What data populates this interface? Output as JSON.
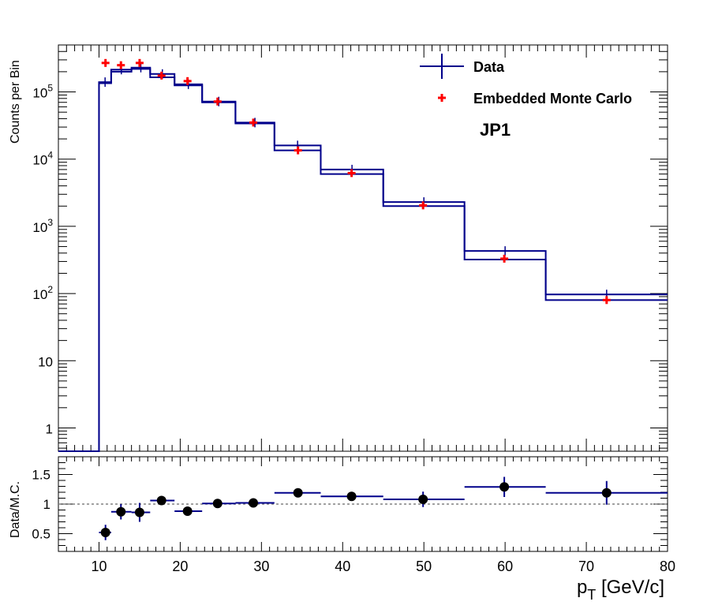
{
  "chart_data": [
    {
      "type": "line",
      "panel": "main",
      "ylabel": "Counts per Bin",
      "log_y": true,
      "xlim": [
        5,
        80
      ],
      "ylim": [
        0.45,
        500000
      ],
      "y_tick_labels": [
        {
          "value": 1,
          "mant": "1",
          "exp": ""
        },
        {
          "value": 10,
          "mant": "10",
          "exp": ""
        },
        {
          "value": 100,
          "mant": "10",
          "exp": "2"
        },
        {
          "value": 1000,
          "mant": "10",
          "exp": "3"
        },
        {
          "value": 10000,
          "mant": "10",
          "exp": "4"
        },
        {
          "value": 100000,
          "mant": "10",
          "exp": "5"
        }
      ],
      "annotation": "JP1",
      "legend_position": "top-right",
      "bin_edges": [
        10,
        11.5,
        14,
        16.3,
        19.3,
        22.7,
        26.8,
        31.6,
        37.3,
        45,
        55,
        65,
        80
      ],
      "series": [
        {
          "name": "Data",
          "style": "step",
          "color": "#00008b",
          "values": [
            140000,
            215000,
            230000,
            185000,
            130000,
            72000,
            35000,
            16000,
            7000,
            2300,
            430,
            97
          ]
        },
        {
          "name": "Data",
          "style": "step",
          "color": "#00008b",
          "values": [
            135000,
            200000,
            220000,
            165000,
            125000,
            70000,
            34000,
            13500,
            6000,
            2000,
            320,
            80
          ]
        },
        {
          "name": "Embedded Monte Carlo",
          "style": "marker",
          "color": "#ff0000",
          "x": [
            10.8,
            12.7,
            15,
            17.7,
            20.9,
            24.6,
            29,
            34.5,
            41.1,
            49.9,
            59.9,
            72.5
          ],
          "values": [
            270000,
            250000,
            270000,
            175000,
            145000,
            72000,
            35000,
            13500,
            6200,
            2050,
            330,
            80
          ]
        }
      ]
    },
    {
      "type": "scatter",
      "panel": "ratio",
      "xlabel_main": "p",
      "xlabel_sub": "T",
      "xlabel_rest": " [GeV/c]",
      "ylabel": "Data/M.C.",
      "xlim": [
        5,
        80
      ],
      "ylim": [
        0.2,
        1.8
      ],
      "x_ticks": [
        "10",
        "20",
        "30",
        "40",
        "50",
        "60",
        "70",
        "80"
      ],
      "y_ticks": [
        "0.5",
        "1",
        "1.5"
      ],
      "reference_line": 1,
      "points": [
        {
          "x": 10.8,
          "y": 0.52,
          "xlo": 10,
          "xhi": 11.5,
          "err": 0.13
        },
        {
          "x": 12.7,
          "y": 0.87,
          "xlo": 11.5,
          "xhi": 14,
          "err": 0.13
        },
        {
          "x": 15,
          "y": 0.86,
          "xlo": 14,
          "xhi": 16.3,
          "err": 0.16
        },
        {
          "x": 17.7,
          "y": 1.06,
          "xlo": 16.3,
          "xhi": 19.3,
          "err": 0.04
        },
        {
          "x": 20.9,
          "y": 0.88,
          "xlo": 19.3,
          "xhi": 22.7,
          "err": 0.03
        },
        {
          "x": 24.6,
          "y": 1.01,
          "xlo": 22.7,
          "xhi": 26.8,
          "err": 0.02
        },
        {
          "x": 29,
          "y": 1.02,
          "xlo": 26.8,
          "xhi": 31.6,
          "err": 0.03
        },
        {
          "x": 34.5,
          "y": 1.19,
          "xlo": 31.6,
          "xhi": 37.3,
          "err": 0.03
        },
        {
          "x": 41.1,
          "y": 1.13,
          "xlo": 37.3,
          "xhi": 45,
          "err": 0.05
        },
        {
          "x": 49.9,
          "y": 1.08,
          "xlo": 45,
          "xhi": 55,
          "err": 0.13
        },
        {
          "x": 59.9,
          "y": 1.29,
          "xlo": 55,
          "xhi": 65,
          "err": 0.17
        },
        {
          "x": 72.5,
          "y": 1.19,
          "xlo": 65,
          "xhi": 80,
          "err": 0.2
        }
      ]
    }
  ]
}
